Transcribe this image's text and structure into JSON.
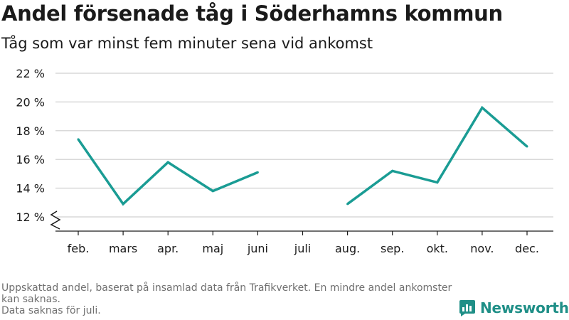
{
  "header": {
    "title": "Andel försenade tåg i Söderhamns kommun",
    "subtitle": "Tåg som var minst fem minuter sena vid ankomst"
  },
  "footnote": {
    "lines": [
      "Uppskattad andel, baserat på insamlad data från Trafikverket. En mindre andel ankomster kan saknas.",
      "Data saknas för juli."
    ]
  },
  "brand": {
    "name": "Newsworthy",
    "color": "#1f8f87"
  },
  "colors": {
    "line": "#1a9c94",
    "grid": "#d9d9d9",
    "axis": "#1a1a1a"
  },
  "chart_data": {
    "type": "line",
    "title": "Andel försenade tåg i Söderhamns kommun",
    "subtitle": "Tåg som var minst fem minuter sena vid ankomst",
    "categories": [
      "feb.",
      "mars",
      "apr.",
      "maj",
      "juni",
      "juli",
      "aug.",
      "sep.",
      "okt.",
      "nov.",
      "dec."
    ],
    "series": [
      {
        "values": [
          17.4,
          12.9,
          15.8,
          13.8,
          15.1,
          null,
          12.9,
          15.2,
          14.4,
          19.6,
          16.9
        ]
      }
    ],
    "yticks": [
      12,
      14,
      16,
      18,
      20,
      22
    ],
    "ytick_suffix": " %",
    "ylim": [
      12,
      22
    ],
    "y_axis_break": true,
    "grid": true,
    "legend": "none"
  }
}
